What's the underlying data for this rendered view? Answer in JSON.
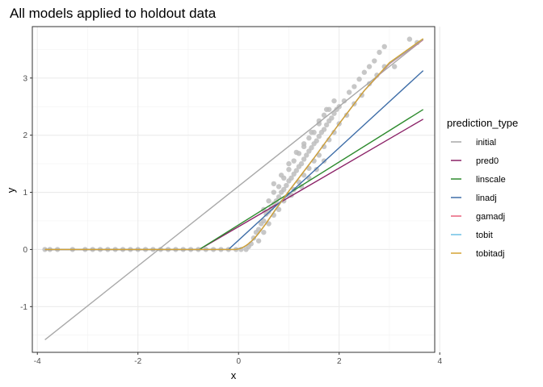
{
  "chart_data": {
    "type": "scatter",
    "title": "All models applied to holdout data",
    "xlabel": "x",
    "ylabel": "y",
    "xlim": [
      -4.1,
      3.9
    ],
    "ylim": [
      -1.8,
      3.9
    ],
    "x_ticks": [
      -4,
      -2,
      0,
      2,
      4
    ],
    "x_tick_labels": [
      "-4",
      "-2",
      "0",
      "2",
      "4"
    ],
    "y_ticks": [
      -1,
      0,
      1,
      2,
      3
    ],
    "y_tick_labels": [
      "-1",
      "0",
      "1",
      "2",
      "3"
    ],
    "grid": true,
    "legend": {
      "title": "prediction_type",
      "position": "right"
    },
    "points_color": "#bdbdbd",
    "points": [
      [
        -3.85,
        0
      ],
      [
        -3.75,
        0
      ],
      [
        -3.6,
        0
      ],
      [
        -3.3,
        0
      ],
      [
        -3.05,
        0
      ],
      [
        -2.9,
        0
      ],
      [
        -2.75,
        0
      ],
      [
        -2.6,
        0
      ],
      [
        -2.45,
        0
      ],
      [
        -2.3,
        0
      ],
      [
        -2.15,
        0
      ],
      [
        -2.0,
        0
      ],
      [
        -1.85,
        0
      ],
      [
        -1.7,
        0
      ],
      [
        -1.55,
        0
      ],
      [
        -1.4,
        0
      ],
      [
        -1.25,
        0
      ],
      [
        -1.1,
        0
      ],
      [
        -0.95,
        0
      ],
      [
        -0.8,
        0
      ],
      [
        -0.65,
        0
      ],
      [
        -0.5,
        0
      ],
      [
        -0.35,
        0
      ],
      [
        -0.2,
        0
      ],
      [
        -0.05,
        0
      ],
      [
        0.05,
        0
      ],
      [
        0.15,
        0
      ],
      [
        0.2,
        0.05
      ],
      [
        0.25,
        0.1
      ],
      [
        0.3,
        0.2
      ],
      [
        0.35,
        0.3
      ],
      [
        0.4,
        0.35
      ],
      [
        0.45,
        0.45
      ],
      [
        0.5,
        0.5
      ],
      [
        0.55,
        0.62
      ],
      [
        0.6,
        0.66
      ],
      [
        0.65,
        0.72
      ],
      [
        0.7,
        0.8
      ],
      [
        0.75,
        0.85
      ],
      [
        0.8,
        0.92
      ],
      [
        0.85,
        1.0
      ],
      [
        0.9,
        1.05
      ],
      [
        0.95,
        1.12
      ],
      [
        1.0,
        1.2
      ],
      [
        1.05,
        1.25
      ],
      [
        1.1,
        1.32
      ],
      [
        1.15,
        1.38
      ],
      [
        1.2,
        1.45
      ],
      [
        1.25,
        1.5
      ],
      [
        1.3,
        1.58
      ],
      [
        1.35,
        1.65
      ],
      [
        1.4,
        1.72
      ],
      [
        1.45,
        1.78
      ],
      [
        1.5,
        1.85
      ],
      [
        1.55,
        1.9
      ],
      [
        1.6,
        1.98
      ],
      [
        1.65,
        2.05
      ],
      [
        1.7,
        2.1
      ],
      [
        1.75,
        2.18
      ],
      [
        1.8,
        2.25
      ],
      [
        1.85,
        2.3
      ],
      [
        1.9,
        2.38
      ],
      [
        1.95,
        2.45
      ],
      [
        2.0,
        2.5
      ],
      [
        0.4,
        0.15
      ],
      [
        0.5,
        0.3
      ],
      [
        0.6,
        0.45
      ],
      [
        0.7,
        0.6
      ],
      [
        0.8,
        0.7
      ],
      [
        0.9,
        0.85
      ],
      [
        1.0,
        0.95
      ],
      [
        1.1,
        1.05
      ],
      [
        1.2,
        1.18
      ],
      [
        1.3,
        1.3
      ],
      [
        1.4,
        1.42
      ],
      [
        1.5,
        1.55
      ],
      [
        1.6,
        1.65
      ],
      [
        1.7,
        1.8
      ],
      [
        1.8,
        1.92
      ],
      [
        1.9,
        2.05
      ],
      [
        2.0,
        2.2
      ],
      [
        0.5,
        0.7
      ],
      [
        0.6,
        0.85
      ],
      [
        0.7,
        1.0
      ],
      [
        0.8,
        1.1
      ],
      [
        0.9,
        1.25
      ],
      [
        1.0,
        1.4
      ],
      [
        1.1,
        1.55
      ],
      [
        1.2,
        1.68
      ],
      [
        1.3,
        1.8
      ],
      [
        1.4,
        1.95
      ],
      [
        1.5,
        2.05
      ],
      [
        1.6,
        2.2
      ],
      [
        1.7,
        2.35
      ],
      [
        1.8,
        2.45
      ],
      [
        1.9,
        2.6
      ],
      [
        2.1,
        2.6
      ],
      [
        2.2,
        2.75
      ],
      [
        2.3,
        2.85
      ],
      [
        2.4,
        2.98
      ],
      [
        2.5,
        3.1
      ],
      [
        2.6,
        3.2
      ],
      [
        2.7,
        3.3
      ],
      [
        2.8,
        3.45
      ],
      [
        2.9,
        3.55
      ],
      [
        2.15,
        2.35
      ],
      [
        2.3,
        2.55
      ],
      [
        2.45,
        2.7
      ],
      [
        2.6,
        2.9
      ],
      [
        2.75,
        3.05
      ],
      [
        2.9,
        3.2
      ],
      [
        1.05,
        0.95
      ],
      [
        1.25,
        1.1
      ],
      [
        1.4,
        1.25
      ],
      [
        1.55,
        1.4
      ],
      [
        1.7,
        1.55
      ],
      [
        0.7,
        1.15
      ],
      [
        0.85,
        1.3
      ],
      [
        1.0,
        1.5
      ],
      [
        1.15,
        1.7
      ],
      [
        1.3,
        1.85
      ],
      [
        1.45,
        2.05
      ],
      [
        1.6,
        2.25
      ],
      [
        1.75,
        2.45
      ],
      [
        3.4,
        3.68
      ],
      [
        3.1,
        3.2
      ],
      [
        3.55,
        3.62
      ]
    ],
    "series": [
      {
        "name": "initial",
        "color": "#a9a9a9",
        "x": [
          -3.85,
          3.67
        ],
        "y": [
          -1.58,
          3.67
        ]
      },
      {
        "name": "pred0",
        "color": "#8b2267",
        "x": [
          -3.85,
          -0.78,
          3.67
        ],
        "y": [
          0,
          0,
          2.28
        ]
      },
      {
        "name": "linscale",
        "color": "#2e8b2e",
        "x": [
          -3.85,
          -0.78,
          3.67
        ],
        "y": [
          0,
          0,
          2.45
        ]
      },
      {
        "name": "linadj",
        "color": "#3f6ea8",
        "x": [
          -3.85,
          -0.2,
          3.67
        ],
        "y": [
          0,
          0,
          3.13
        ]
      },
      {
        "name": "gamadj",
        "color": "#e8617a",
        "x": [
          -3.85,
          -0.1,
          0.0,
          0.1,
          0.2,
          0.3,
          0.4,
          0.5,
          0.7,
          1.0,
          1.5,
          2.0,
          2.5,
          3.0,
          3.67
        ],
        "y": [
          0,
          0,
          0.01,
          0.04,
          0.1,
          0.18,
          0.28,
          0.4,
          0.65,
          1.02,
          1.6,
          2.2,
          2.78,
          3.25,
          3.67
        ]
      },
      {
        "name": "tobit",
        "color": "#6ec1e4",
        "x": [
          -3.85,
          -0.1,
          0.0,
          0.1,
          0.2,
          0.3,
          0.4,
          0.5,
          0.7,
          1.0,
          1.5,
          2.0,
          2.5,
          3.0,
          3.67
        ],
        "y": [
          0,
          0,
          0.01,
          0.04,
          0.1,
          0.18,
          0.28,
          0.4,
          0.65,
          1.02,
          1.6,
          2.2,
          2.78,
          3.26,
          3.68
        ]
      },
      {
        "name": "tobitadj",
        "color": "#d4a233",
        "x": [
          -3.85,
          -0.05,
          0.05,
          0.15,
          0.25,
          0.35,
          0.45,
          0.55,
          0.75,
          1.0,
          1.5,
          2.0,
          2.5,
          3.0,
          3.67
        ],
        "y": [
          0,
          0,
          0.02,
          0.07,
          0.14,
          0.23,
          0.34,
          0.46,
          0.72,
          1.02,
          1.6,
          2.2,
          2.78,
          3.27,
          3.69
        ]
      }
    ]
  }
}
